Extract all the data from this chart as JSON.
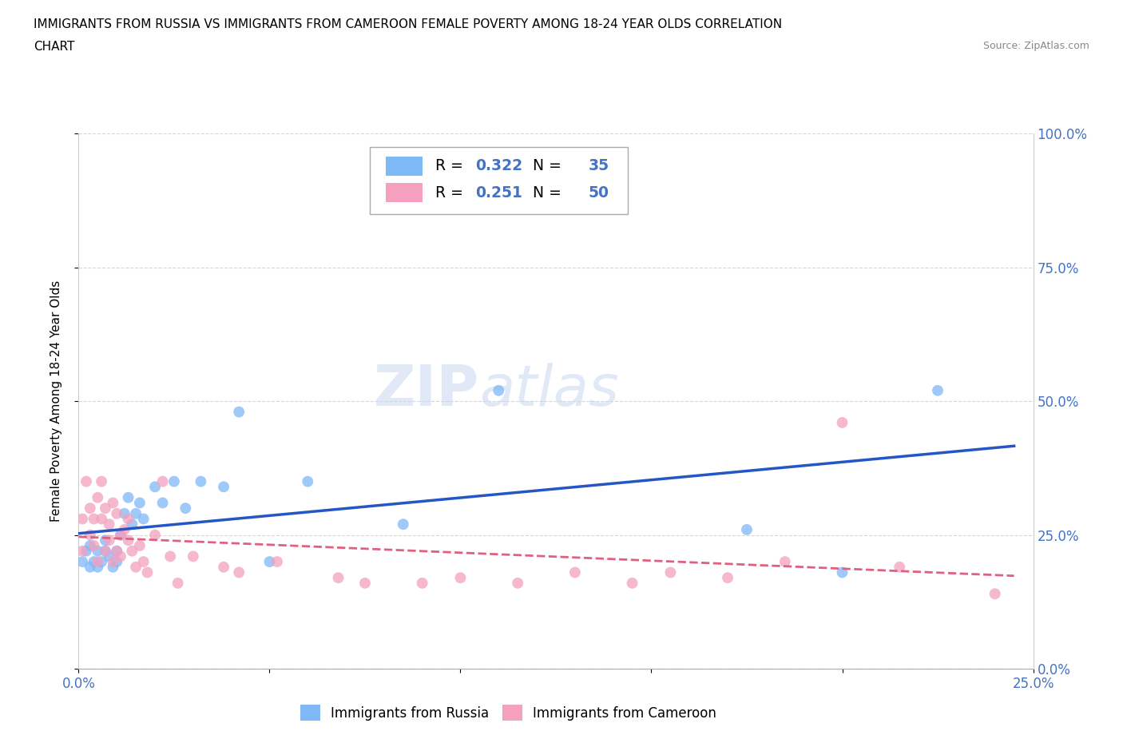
{
  "title_line1": "IMMIGRANTS FROM RUSSIA VS IMMIGRANTS FROM CAMEROON FEMALE POVERTY AMONG 18-24 YEAR OLDS CORRELATION",
  "title_line2": "CHART",
  "source": "Source: ZipAtlas.com",
  "ylabel": "Female Poverty Among 18-24 Year Olds",
  "xlim": [
    0.0,
    0.25
  ],
  "ylim": [
    0.0,
    1.0
  ],
  "ytick_vals": [
    0.0,
    0.25,
    0.5,
    0.75,
    1.0
  ],
  "ytick_labels": [
    "0.0%",
    "25.0%",
    "50.0%",
    "75.0%",
    "100.0%"
  ],
  "xtick_vals": [
    0.0,
    0.05,
    0.1,
    0.15,
    0.2,
    0.25
  ],
  "xtick_labels": [
    "0.0%",
    "",
    "",
    "",
    "",
    "25.0%"
  ],
  "russia_color": "#7eb8f7",
  "cameroon_color": "#f4a0be",
  "russia_line_color": "#2457c5",
  "cameroon_line_color": "#e06080",
  "tick_color": "#4472c4",
  "R_russia": "0.322",
  "N_russia": "35",
  "R_cameroon": "0.251",
  "N_cameroon": "50",
  "watermark_zip": "ZIP",
  "watermark_atlas": "atlas",
  "russia_scatter_x": [
    0.001,
    0.002,
    0.003,
    0.003,
    0.004,
    0.005,
    0.005,
    0.006,
    0.007,
    0.007,
    0.008,
    0.009,
    0.01,
    0.01,
    0.011,
    0.012,
    0.013,
    0.014,
    0.015,
    0.016,
    0.017,
    0.02,
    0.022,
    0.025,
    0.028,
    0.032,
    0.038,
    0.042,
    0.05,
    0.06,
    0.085,
    0.11,
    0.175,
    0.2,
    0.225
  ],
  "russia_scatter_y": [
    0.2,
    0.22,
    0.19,
    0.23,
    0.2,
    0.22,
    0.19,
    0.2,
    0.22,
    0.24,
    0.21,
    0.19,
    0.2,
    0.22,
    0.25,
    0.29,
    0.32,
    0.27,
    0.29,
    0.31,
    0.28,
    0.34,
    0.31,
    0.35,
    0.3,
    0.35,
    0.34,
    0.48,
    0.2,
    0.35,
    0.27,
    0.52,
    0.26,
    0.18,
    0.52
  ],
  "cameroon_scatter_x": [
    0.001,
    0.001,
    0.002,
    0.003,
    0.003,
    0.004,
    0.004,
    0.005,
    0.005,
    0.006,
    0.006,
    0.007,
    0.007,
    0.008,
    0.008,
    0.009,
    0.009,
    0.01,
    0.01,
    0.011,
    0.011,
    0.012,
    0.013,
    0.013,
    0.014,
    0.015,
    0.016,
    0.017,
    0.018,
    0.02,
    0.022,
    0.024,
    0.026,
    0.03,
    0.038,
    0.042,
    0.052,
    0.068,
    0.075,
    0.09,
    0.1,
    0.115,
    0.13,
    0.145,
    0.155,
    0.17,
    0.185,
    0.2,
    0.215,
    0.24
  ],
  "cameroon_scatter_y": [
    0.22,
    0.28,
    0.35,
    0.25,
    0.3,
    0.23,
    0.28,
    0.32,
    0.2,
    0.28,
    0.35,
    0.22,
    0.3,
    0.27,
    0.24,
    0.31,
    0.2,
    0.22,
    0.29,
    0.25,
    0.21,
    0.26,
    0.24,
    0.28,
    0.22,
    0.19,
    0.23,
    0.2,
    0.18,
    0.25,
    0.35,
    0.21,
    0.16,
    0.21,
    0.19,
    0.18,
    0.2,
    0.17,
    0.16,
    0.16,
    0.17,
    0.16,
    0.18,
    0.16,
    0.18,
    0.17,
    0.2,
    0.46,
    0.19,
    0.14
  ]
}
